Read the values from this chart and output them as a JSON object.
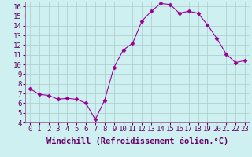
{
  "x": [
    0,
    1,
    2,
    3,
    4,
    5,
    6,
    7,
    8,
    9,
    10,
    11,
    12,
    13,
    14,
    15,
    16,
    17,
    18,
    19,
    20,
    21,
    22,
    23
  ],
  "y": [
    7.5,
    6.9,
    6.8,
    6.4,
    6.5,
    6.4,
    6.0,
    4.3,
    6.3,
    9.7,
    11.5,
    12.2,
    14.5,
    15.5,
    16.3,
    16.2,
    15.3,
    15.5,
    15.3,
    14.1,
    12.7,
    11.1,
    10.2,
    10.4
  ],
  "line_color": "#990099",
  "marker": "D",
  "marker_size": 2.5,
  "bg_color": "#cff0f0",
  "grid_color": "#aacccc",
  "xlabel": "Windchill (Refroidissement éolien,°C)",
  "xlabel_fontsize": 7.5,
  "ylim": [
    4,
    16.5
  ],
  "xlim": [
    -0.5,
    23.5
  ],
  "yticks": [
    4,
    5,
    6,
    7,
    8,
    9,
    10,
    11,
    12,
    13,
    14,
    15,
    16
  ],
  "xticks": [
    0,
    1,
    2,
    3,
    4,
    5,
    6,
    7,
    8,
    9,
    10,
    11,
    12,
    13,
    14,
    15,
    16,
    17,
    18,
    19,
    20,
    21,
    22,
    23
  ],
  "tick_fontsize": 6.5,
  "spine_color": "#996699"
}
